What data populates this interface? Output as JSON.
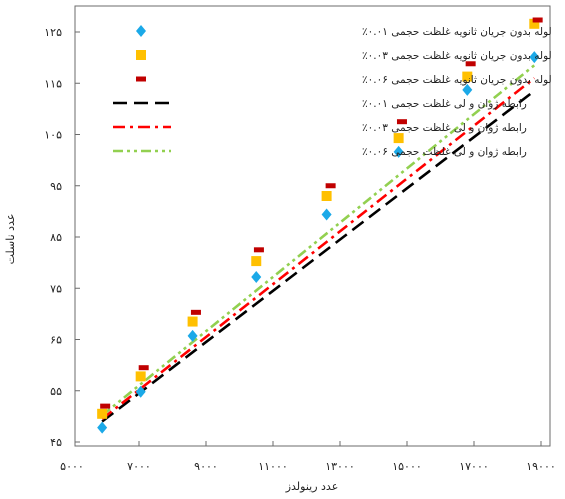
{
  "chart_data": {
    "type": "scatter",
    "xlabel": "عدد رینولدز",
    "ylabel": "عدد ناسلت",
    "xlim": [
      5000,
      19500
    ],
    "ylim": [
      45,
      128
    ],
    "x_ticks": [
      5000,
      7000,
      9000,
      11000,
      13000,
      15000,
      17000,
      19000
    ],
    "x_tick_labels": [
      "۵۰۰۰",
      "۷۰۰۰",
      "۹۰۰۰",
      "۱۱۰۰۰",
      "۱۳۰۰۰",
      "۱۵۰۰۰",
      "۱۷۰۰۰",
      "۱۹۰۰۰"
    ],
    "y_ticks": [
      45,
      55,
      65,
      75,
      85,
      95,
      105,
      115,
      125
    ],
    "y_tick_labels": [
      "۴۵",
      "۵۵",
      "۶۵",
      "۷۵",
      "۸۵",
      "۹۵",
      "۱۰۵",
      "۱۱۵",
      "۱۲۵"
    ],
    "grid": false,
    "legend_position": "top-left",
    "series": [
      {
        "name": "لوله بدون جریان ثانویه غلظت حجمی ۰.۰۱٪",
        "kind": "marker",
        "marker": "diamond",
        "color": "#1ba9e8",
        "x": [
          5900,
          7050,
          8600,
          10500,
          12600,
          14750,
          16800,
          18800
        ],
        "y": [
          47.8,
          54.8,
          65.7,
          77.2,
          89.4,
          101.6,
          113.7,
          120.1
        ]
      },
      {
        "name": "لوله بدون جریان ثانویه غلظت حجمی ۰.۰۳٪",
        "kind": "marker",
        "marker": "square",
        "color": "#ffc000",
        "x": [
          5900,
          7050,
          8600,
          10500,
          12600,
          14750,
          16800,
          18800
        ],
        "y": [
          50.5,
          57.8,
          68.5,
          80.3,
          93.0,
          104.3,
          116.3,
          126.6
        ]
      },
      {
        "name": "لوله بدون جریان ثانویه غلظت حجمی ۰.۰۶٪",
        "kind": "marker",
        "marker": "dash",
        "color": "#c00000",
        "x": [
          5990,
          7140,
          8700,
          10580,
          12720,
          14850,
          16900,
          18900
        ],
        "y": [
          52.0,
          59.5,
          70.3,
          82.5,
          95.0,
          107.5,
          118.8,
          129.3
        ]
      },
      {
        "name": "رابطه ژوان و لی غلظت حجمی ۰.۰۱٪",
        "kind": "line",
        "dash": "14,7",
        "color": "#000000",
        "x": [
          5900,
          18800
        ],
        "y": [
          49.0,
          113.5
        ]
      },
      {
        "name": "رابطه ژوان و لی غلظت حجمی ۰.۰۳٪",
        "kind": "line",
        "dash": "12,5,3,5",
        "color": "#ff0000",
        "x": [
          5900,
          18800
        ],
        "y": [
          49.5,
          116.0
        ]
      },
      {
        "name": "رابطه ژوان و لی غلظت حجمی ۰.۰۶٪",
        "kind": "line",
        "dash": "10,4,3,4,3,4",
        "color": "#92d050",
        "x": [
          5900,
          18800
        ],
        "y": [
          50.2,
          118.5
        ]
      }
    ]
  }
}
